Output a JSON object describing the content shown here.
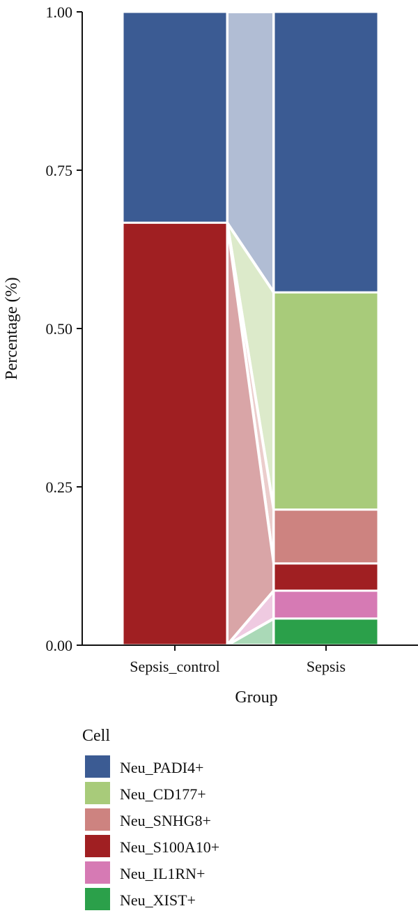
{
  "chart_data": {
    "type": "bar",
    "subtype": "stacked-100-alluvial",
    "xlabel": "Group",
    "ylabel": "Percentage (%)",
    "ylim": [
      0,
      1
    ],
    "yticks": [
      0,
      0.25,
      0.5,
      0.75,
      1
    ],
    "ytick_labels": [
      "0.00",
      "0.25",
      "0.50",
      "0.75",
      "1.00"
    ],
    "categories": [
      "Sepsis_control",
      "Sepsis"
    ],
    "legend": {
      "title": "Cell",
      "position": "bottom-left"
    },
    "grid": false,
    "series": [
      {
        "name": "Neu_PADI4+",
        "color": "#3b5b93",
        "values": [
          0.333,
          0.443
        ]
      },
      {
        "name": "Neu_CD177+",
        "color": "#a8cb7a",
        "values": [
          0.0,
          0.343
        ]
      },
      {
        "name": "Neu_SNHG8+",
        "color": "#cd8380",
        "values": [
          0.0,
          0.085
        ]
      },
      {
        "name": "Neu_S100A10+",
        "color": "#a01f22",
        "values": [
          0.667,
          0.043
        ]
      },
      {
        "name": "Neu_IL1RN+",
        "color": "#d67ab4",
        "values": [
          0.0,
          0.044
        ]
      },
      {
        "name": "Neu_XIST+",
        "color": "#2ba04a",
        "values": [
          0.0,
          0.042
        ]
      }
    ]
  }
}
